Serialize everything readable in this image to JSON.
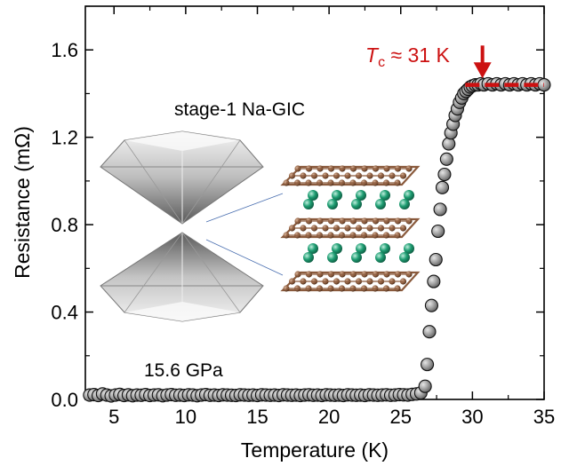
{
  "chart_data": {
    "type": "scatter",
    "xlabel": "Temperature (K)",
    "ylabel": "Resistance (mΩ)",
    "xlim": [
      3,
      35
    ],
    "ylim": [
      0,
      1.8
    ],
    "xticks": [
      5,
      10,
      15,
      20,
      25,
      30,
      35
    ],
    "yticks": [
      0.0,
      0.4,
      0.8,
      1.2,
      1.6
    ],
    "ytick_labels": [
      "0.0",
      "0.4",
      "0.8",
      "1.2",
      "1.6"
    ],
    "grid": false,
    "series": [
      {
        "marker_color": "#9a9a9a",
        "edge_color": "#111111",
        "x": [
          3.3,
          3.6,
          3.9,
          4.2,
          4.5,
          4.8,
          5.1,
          5.4,
          5.7,
          6.0,
          6.3,
          6.6,
          6.9,
          7.2,
          7.5,
          7.8,
          8.1,
          8.4,
          8.7,
          9.0,
          9.3,
          9.6,
          9.9,
          10.2,
          10.5,
          10.8,
          11.1,
          11.4,
          11.7,
          12.0,
          12.3,
          12.6,
          12.9,
          13.2,
          13.5,
          13.8,
          14.1,
          14.4,
          14.7,
          15.0,
          15.3,
          15.6,
          15.9,
          16.2,
          16.5,
          16.8,
          17.1,
          17.4,
          17.7,
          18.0,
          18.3,
          18.6,
          18.9,
          19.2,
          19.5,
          19.8,
          20.1,
          20.4,
          20.7,
          21.0,
          21.3,
          21.6,
          21.9,
          22.2,
          22.5,
          22.8,
          23.1,
          23.4,
          23.7,
          24.0,
          24.3,
          24.6,
          24.9,
          25.2,
          25.5,
          25.8,
          26.1,
          26.4,
          26.7,
          26.85,
          27.0,
          27.15,
          27.3,
          27.45,
          27.6,
          27.75,
          27.9,
          28.05,
          28.2,
          28.35,
          28.5,
          28.65,
          28.8,
          28.95,
          29.1,
          29.25,
          29.4,
          29.55,
          29.7,
          29.85,
          30.0,
          30.2,
          30.4,
          30.6,
          30.8,
          31.1,
          31.4,
          31.7,
          32.0,
          32.3,
          32.6,
          32.9,
          33.2,
          33.5,
          33.8,
          34.1,
          34.4,
          34.7,
          35.0
        ],
        "y": [
          0.02,
          0.022,
          0.018,
          0.025,
          0.02,
          0.016,
          0.02,
          0.023,
          0.018,
          0.021,
          0.017,
          0.02,
          0.019,
          0.022,
          0.018,
          0.02,
          0.021,
          0.017,
          0.02,
          0.022,
          0.019,
          0.02,
          0.018,
          0.021,
          0.02,
          0.017,
          0.02,
          0.022,
          0.019,
          0.02,
          0.018,
          0.021,
          0.02,
          0.019,
          0.018,
          0.021,
          0.02,
          0.019,
          0.02,
          0.018,
          0.021,
          0.02,
          0.019,
          0.02,
          0.018,
          0.021,
          0.02,
          0.019,
          0.02,
          0.018,
          0.02,
          0.021,
          0.019,
          0.02,
          0.018,
          0.021,
          0.02,
          0.019,
          0.02,
          0.018,
          0.021,
          0.02,
          0.019,
          0.02,
          0.018,
          0.021,
          0.02,
          0.019,
          0.02,
          0.021,
          0.019,
          0.02,
          0.022,
          0.021,
          0.02,
          0.023,
          0.025,
          0.03,
          0.06,
          0.16,
          0.31,
          0.43,
          0.54,
          0.64,
          0.77,
          0.87,
          0.97,
          1.03,
          1.1,
          1.17,
          1.22,
          1.26,
          1.3,
          1.33,
          1.36,
          1.38,
          1.4,
          1.41,
          1.42,
          1.43,
          1.435,
          1.44,
          1.44,
          1.445,
          1.44,
          1.445,
          1.44,
          1.445,
          1.44,
          1.445,
          1.44,
          1.445,
          1.44,
          1.445,
          1.44,
          1.445,
          1.44,
          1.445,
          1.44
        ]
      }
    ],
    "tc_line": {
      "color": "#cc1111",
      "y": 1.44,
      "x_start": 29.5,
      "x_end": 35
    },
    "arrow": {
      "x": 30.7,
      "y_tail": 1.62,
      "y_head": 1.47,
      "color": "#cc1111"
    },
    "annotations": {
      "tc_symbol": "T",
      "tc_subscript": "c",
      "tc_rest": " ≈ 31 K",
      "tc_color": "#cc1111",
      "sample": "stage-1 Na-GIC",
      "pressure": "15.6 GPa"
    },
    "inset": {
      "diamond_color": "#d9d9d9",
      "carbon_color": "#8a5a3c",
      "sodium_color": "#1f9e73"
    }
  }
}
